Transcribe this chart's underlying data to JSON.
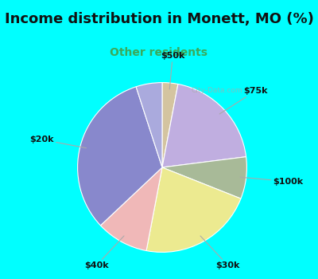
{
  "title": "Income distribution in Monett, MO (%)",
  "subtitle": "Other residents",
  "title_fontsize": 13,
  "subtitle_fontsize": 10,
  "title_color": "#111111",
  "subtitle_color": "#3aaa5a",
  "bg_cyan": "#00ffff",
  "bg_chart": "#e0f0e8",
  "slices": [
    {
      "label": "$75k",
      "value": 20,
      "color": "#c0aee0"
    },
    {
      "label": "$100k",
      "value": 8,
      "color": "#a8ba98"
    },
    {
      "label": "$30k",
      "value": 22,
      "color": "#ecea90"
    },
    {
      "label": "$40k",
      "value": 10,
      "color": "#f0b8b8"
    },
    {
      "label": "$20k",
      "value": 32,
      "color": "#8888cc"
    },
    {
      "label": "$50k",
      "value": 3,
      "color": "#d4c4a0"
    },
    {
      "label": "",
      "value": 5,
      "color": "#aaaadd"
    }
  ],
  "startangle": 90,
  "watermark": "City-Data.com"
}
